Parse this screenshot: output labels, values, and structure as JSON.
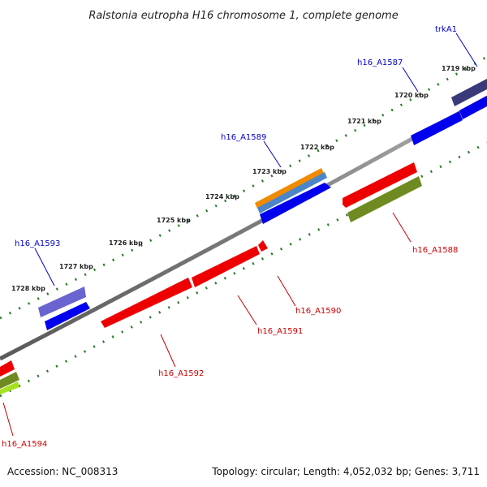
{
  "title": "Ralstonia eutropha H16 chromosome 1, complete genome",
  "footer": {
    "accession": "Accession: NC_008313",
    "summary": "Topology: circular; Length: 4,052,032 bp; Genes: 3,711"
  },
  "ticks": [
    "1719 kbp",
    "1720 kbp",
    "1721 kbp",
    "1722 kbp",
    "1723 kbp",
    "1724 kbp",
    "1725 kbp",
    "1726 kbp",
    "1727 kbp",
    "1728 kbp"
  ],
  "genes_forward": [
    "trkA1",
    "h16_A1587",
    "h16_A1589",
    "h16_A1593"
  ],
  "genes_reverse": [
    "h16_A1588",
    "h16_A1590",
    "h16_A1591",
    "h16_A1592",
    "h16_A1594"
  ],
  "colors": {
    "backbone": "#8a8a8a",
    "forward_cds": "#0000ee",
    "reverse_cds": "#ee0000",
    "tick_dots": "#2a7a2a",
    "forward_label": "#0000cc",
    "reverse_label": "#cc0000",
    "feature_orange": "#f08a00",
    "feature_steelblue": "#4a86c8",
    "feature_slate": "#6a64d0",
    "feature_navy": "#3a3a7a",
    "feature_olive": "#6e8a20",
    "feature_lime": "#a6e020"
  }
}
